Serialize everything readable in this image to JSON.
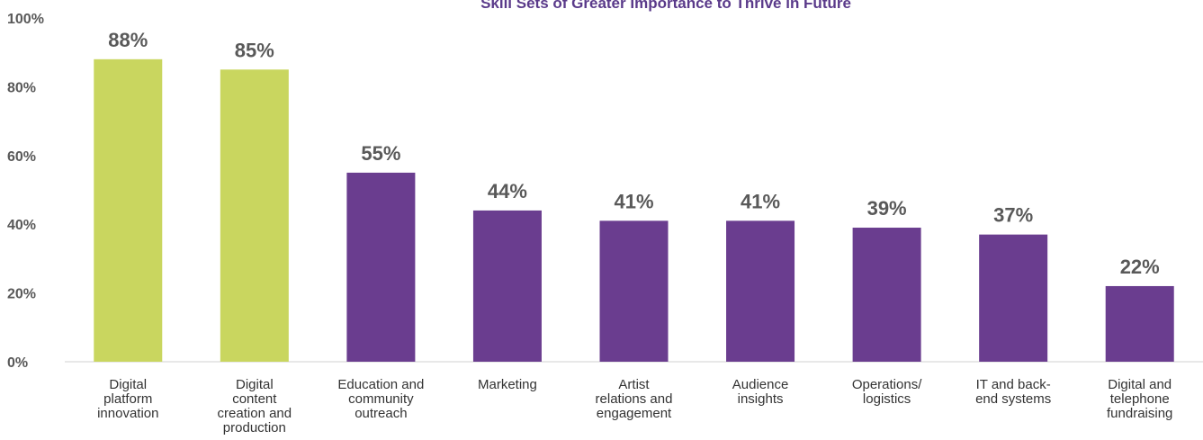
{
  "chart_data": {
    "type": "bar",
    "title": "Skill Sets of Greater Importance to Thrive in Future",
    "xlabel": "",
    "ylabel": "",
    "ylim": [
      0,
      100
    ],
    "yticks": [
      "0%",
      "20%",
      "40%",
      "60%",
      "80%",
      "100%"
    ],
    "grid": false,
    "categories": [
      "Digital platform innovation",
      "Digital content creation and production",
      "Education and community outreach",
      "Marketing",
      "Artist relations and engagement",
      "Audience insights",
      "Operations/ logistics",
      "IT and back-end systems",
      "Digital and telephone fundraising"
    ],
    "category_lines": [
      [
        "Digital",
        "platform",
        "innovation"
      ],
      [
        "Digital",
        "content",
        "creation and",
        "production"
      ],
      [
        "Education and",
        "community",
        "outreach"
      ],
      [
        "Marketing"
      ],
      [
        "Artist",
        "relations and",
        "engagement"
      ],
      [
        "Audience",
        "insights"
      ],
      [
        "Operations/",
        "logistics"
      ],
      [
        "IT and back-",
        "end systems"
      ],
      [
        "Digital and",
        "telephone",
        "fundraising"
      ]
    ],
    "values": [
      88,
      85,
      55,
      44,
      41,
      41,
      39,
      37,
      22
    ],
    "data_labels": [
      "88%",
      "85%",
      "55%",
      "44%",
      "41%",
      "41%",
      "39%",
      "37%",
      "22%"
    ],
    "colors": [
      "#c9d65f",
      "#c9d65f",
      "#6a3d8f",
      "#6a3d8f",
      "#6a3d8f",
      "#6a3d8f",
      "#6a3d8f",
      "#6a3d8f",
      "#6a3d8f"
    ],
    "axis_color": "#d0d0d0"
  }
}
